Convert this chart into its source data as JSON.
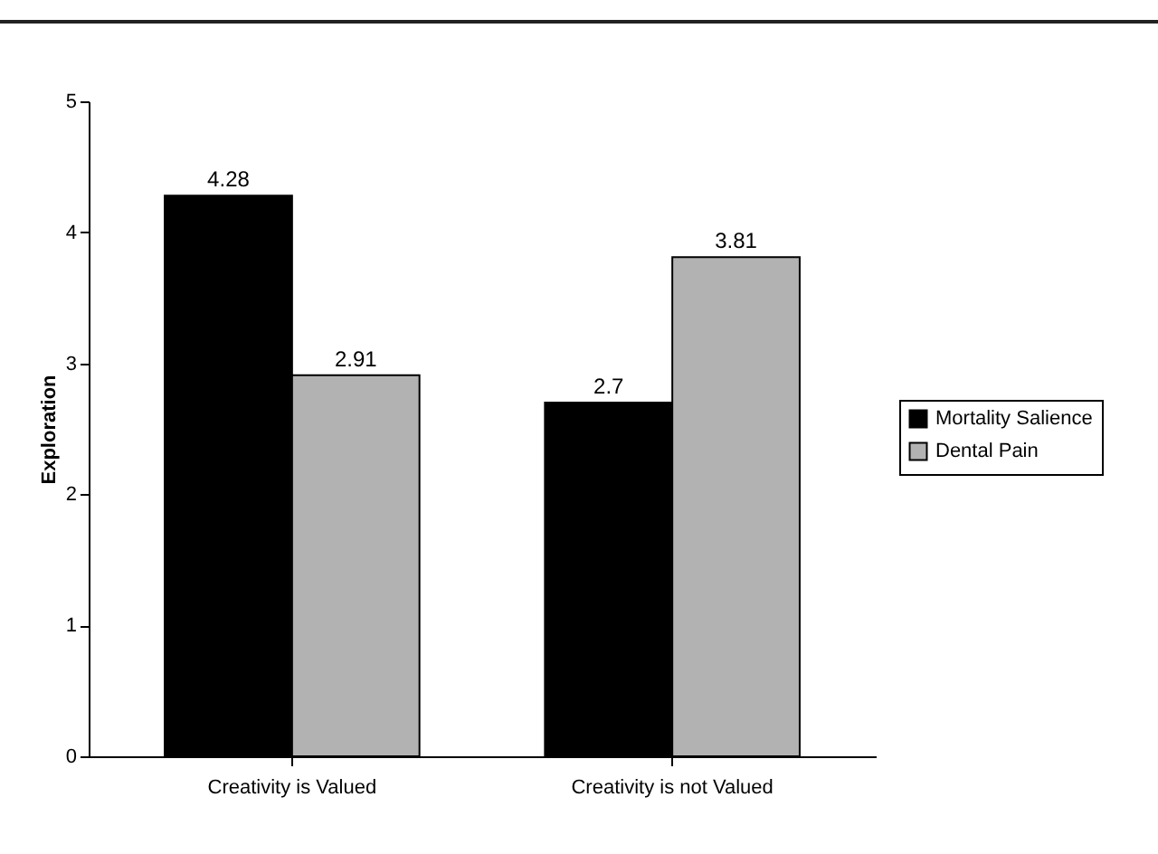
{
  "chart_data": {
    "type": "bar",
    "ylabel": "Exploration",
    "categories": [
      "Creativity is Valued",
      "Creativity is not Valued"
    ],
    "series": [
      {
        "name": "Mortality Salience",
        "color": "#000000",
        "values": [
          4.28,
          2.7
        ]
      },
      {
        "name": "Dental Pain",
        "color": "#b2b2b2",
        "values": [
          2.91,
          3.81
        ]
      }
    ],
    "ylim": [
      0,
      5
    ],
    "yticks": [
      0,
      1,
      2,
      3,
      4,
      5
    ],
    "grid": false,
    "legend": "right",
    "data_labels": true
  }
}
